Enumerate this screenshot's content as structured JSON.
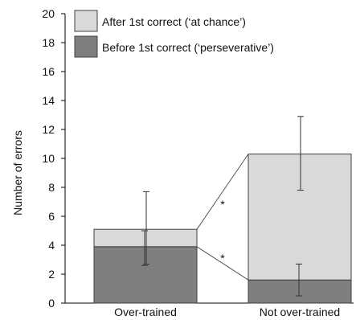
{
  "chart_data": {
    "type": "bar",
    "stacked": true,
    "categories": [
      "Over-trained",
      "Not over-trained"
    ],
    "ylabel": "Number of errors",
    "xlabel": "",
    "ylim": [
      0,
      20
    ],
    "yticks": [
      0,
      2,
      4,
      6,
      8,
      10,
      12,
      14,
      16,
      18,
      20
    ],
    "grid": false,
    "legend_position": "top-left",
    "series": [
      {
        "name": "Before 1st correct (‘perseverative’)",
        "values": [
          3.9,
          1.6
        ],
        "error_low": [
          2.6,
          0.5
        ],
        "error_high": [
          5.0,
          2.7
        ],
        "color": "#7f7f7f"
      },
      {
        "name": "After 1st correct (‘at chance’)",
        "values": [
          1.2,
          8.7
        ],
        "error_low": [
          2.7,
          7.8
        ],
        "error_high": [
          7.7,
          12.9
        ],
        "color": "#d9d9d9"
      }
    ],
    "annotations": [
      "*",
      "*"
    ]
  }
}
